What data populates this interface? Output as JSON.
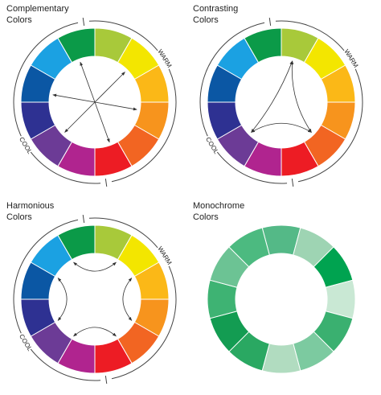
{
  "wheels": [
    {
      "title": [
        "Complementary",
        "Colors"
      ],
      "warm": "WARM",
      "cool": "COOL"
    },
    {
      "title": [
        "Contrasting",
        "Colors"
      ],
      "warm": "WARM",
      "cool": "COOL"
    },
    {
      "title": [
        "Harmonious",
        "Colors"
      ],
      "warm": "WARM",
      "cool": "COOL"
    },
    {
      "title": [
        "Monochrome",
        "Colors"
      ]
    }
  ]
}
